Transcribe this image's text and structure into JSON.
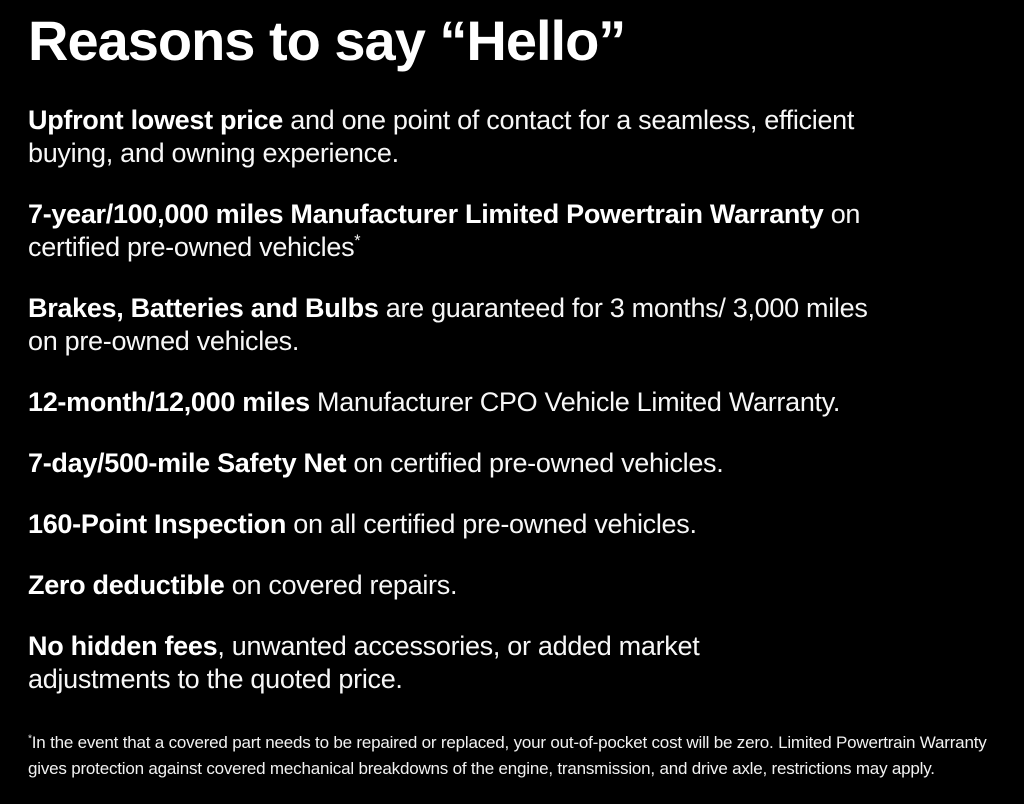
{
  "title": "Reasons to say “Hello”",
  "bullets": [
    {
      "bold": "Upfront lowest price",
      "rest": " and one point of contact for a seamless, efficient\nbuying, and owning experience."
    },
    {
      "bold": "7-year/100,000 miles Manufacturer Limited Powertrain Warranty",
      "rest": " on\ncertified pre-owned vehicles",
      "sup": "*"
    },
    {
      "bold": "Brakes, Batteries and Bulbs",
      "rest": " are guaranteed for 3 months/ 3,000 miles\non pre-owned vehicles."
    },
    {
      "bold": "12-month/12,000 miles",
      "rest": " Manufacturer CPO Vehicle Limited Warranty."
    },
    {
      "bold": "7-day/500-mile Safety Net",
      "rest": " on certified pre-owned vehicles."
    },
    {
      "bold": "160-Point Inspection",
      "rest": " on all certified pre-owned vehicles."
    },
    {
      "bold": "Zero deductible",
      "rest": " on covered repairs."
    },
    {
      "bold": "No hidden fees",
      "rest": ", unwanted accessories, or added market\nadjustments to the quoted price."
    }
  ],
  "footnote": {
    "sup": "*",
    "text": "In the event that a covered part needs to be repaired or replaced, your out-of-pocket cost will be zero. Limited Powertrain Warranty\ngives protection against covered mechanical breakdowns of the engine, transmission, and drive axle, restrictions may apply."
  },
  "colors": {
    "background": "#000000",
    "text": "#ffffff"
  }
}
